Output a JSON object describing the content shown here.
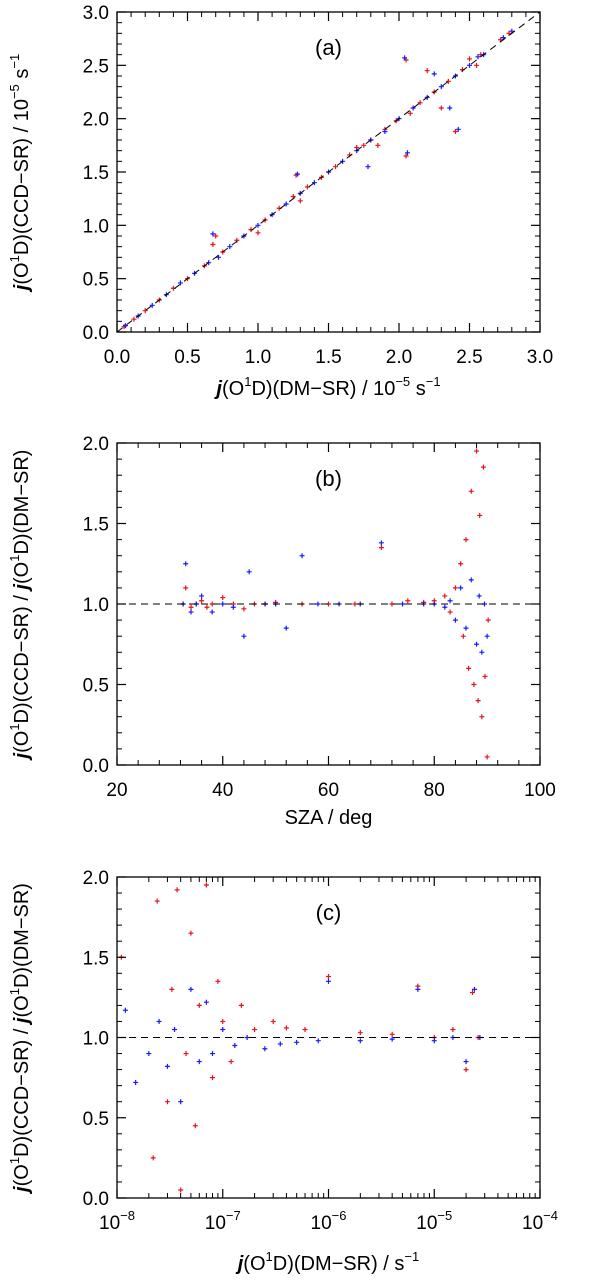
{
  "colors": {
    "series_a": "#e8131b",
    "series_b": "#1a1aff",
    "frame": "#000000",
    "refline": "#000000"
  },
  "chart_data": [
    {
      "id": "a",
      "type": "scatter",
      "panel_label": "(a)",
      "xlabel": {
        "pre": "j",
        "mid": "(O",
        "sup": "1",
        "post": "D)(DM−SR) / 10",
        "sup2": "−5",
        "tail": " s",
        "sup3": "−1"
      },
      "ylabel": {
        "pre": "j",
        "mid": "(O",
        "sup": "1",
        "post": "D)(CCD−SR) / 10",
        "sup2": "−5",
        "tail": " s",
        "sup3": "−1"
      },
      "xlim": [
        0,
        3
      ],
      "ylim": [
        0,
        3
      ],
      "xticks": [
        0,
        0.5,
        1,
        1.5,
        2,
        2.5,
        3
      ],
      "xtick_labels": [
        "0.0",
        "0.5",
        "1.0",
        "1.5",
        "2.0",
        "2.5",
        "3.0"
      ],
      "yticks": [
        0,
        0.5,
        1,
        1.5,
        2,
        2.5,
        3
      ],
      "ytick_labels": [
        "0.0",
        "0.5",
        "1.0",
        "1.5",
        "2.0",
        "2.5",
        "3.0"
      ],
      "reference_line": "1:1 dashed",
      "series": [
        {
          "color_key": "series_a",
          "points": [
            [
              0.05,
              0.05
            ],
            [
              0.12,
              0.12
            ],
            [
              0.2,
              0.2
            ],
            [
              0.3,
              0.3
            ],
            [
              0.4,
              0.41
            ],
            [
              0.5,
              0.5
            ],
            [
              0.62,
              0.62
            ],
            [
              0.7,
              0.9
            ],
            [
              0.68,
              0.82
            ],
            [
              0.75,
              0.75
            ],
            [
              0.85,
              0.86
            ],
            [
              0.95,
              0.96
            ],
            [
              1.0,
              0.93
            ],
            [
              1.05,
              1.05
            ],
            [
              1.15,
              1.16
            ],
            [
              1.25,
              1.27
            ],
            [
              1.27,
              1.47
            ],
            [
              1.3,
              1.23
            ],
            [
              1.35,
              1.36
            ],
            [
              1.45,
              1.45
            ],
            [
              1.55,
              1.55
            ],
            [
              1.65,
              1.66
            ],
            [
              1.7,
              1.73
            ],
            [
              1.75,
              1.75
            ],
            [
              1.8,
              1.8
            ],
            [
              1.85,
              1.75
            ],
            [
              1.9,
              1.9
            ],
            [
              1.98,
              1.98
            ],
            [
              2.05,
              2.55
            ],
            [
              2.05,
              1.65
            ],
            [
              2.08,
              2.05
            ],
            [
              2.15,
              2.15
            ],
            [
              2.2,
              2.45
            ],
            [
              2.25,
              2.25
            ],
            [
              2.3,
              2.1
            ],
            [
              2.35,
              2.35
            ],
            [
              2.4,
              1.88
            ],
            [
              2.45,
              2.46
            ],
            [
              2.5,
              2.56
            ],
            [
              2.55,
              2.5
            ],
            [
              2.58,
              2.6
            ],
            [
              2.72,
              2.74
            ],
            [
              2.78,
              2.8
            ]
          ]
        },
        {
          "color_key": "series_b",
          "points": [
            [
              0.06,
              0.06
            ],
            [
              0.15,
              0.15
            ],
            [
              0.25,
              0.25
            ],
            [
              0.35,
              0.35
            ],
            [
              0.45,
              0.46
            ],
            [
              0.55,
              0.55
            ],
            [
              0.65,
              0.65
            ],
            [
              0.68,
              0.92
            ],
            [
              0.72,
              0.7
            ],
            [
              0.8,
              0.8
            ],
            [
              0.9,
              0.9
            ],
            [
              1.0,
              1.0
            ],
            [
              1.1,
              1.1
            ],
            [
              1.2,
              1.2
            ],
            [
              1.28,
              1.48
            ],
            [
              1.3,
              1.3
            ],
            [
              1.4,
              1.4
            ],
            [
              1.5,
              1.5
            ],
            [
              1.6,
              1.6
            ],
            [
              1.7,
              1.7
            ],
            [
              1.78,
              1.55
            ],
            [
              1.8,
              1.8
            ],
            [
              1.9,
              1.88
            ],
            [
              2.0,
              2.0
            ],
            [
              2.04,
              2.57
            ],
            [
              2.06,
              1.68
            ],
            [
              2.1,
              2.1
            ],
            [
              2.2,
              2.2
            ],
            [
              2.25,
              2.42
            ],
            [
              2.3,
              2.3
            ],
            [
              2.36,
              2.1
            ],
            [
              2.4,
              2.4
            ],
            [
              2.42,
              1.9
            ],
            [
              2.5,
              2.5
            ],
            [
              2.56,
              2.58
            ],
            [
              2.6,
              2.6
            ],
            [
              2.74,
              2.76
            ],
            [
              2.8,
              2.82
            ]
          ]
        }
      ]
    },
    {
      "id": "b",
      "type": "scatter",
      "panel_label": "(b)",
      "xlabel": {
        "text": "SZA / deg"
      },
      "ylabel": {
        "pre": "j",
        "mid": "(O",
        "sup": "1",
        "post": "D)(CCD−SR) / ",
        "pre2": "j",
        "mid2": "(O",
        "sup2": "1",
        "post2": "D)(DM−SR)"
      },
      "xlim": [
        20,
        100
      ],
      "ylim": [
        0,
        2
      ],
      "xticks": [
        20,
        40,
        60,
        80,
        100
      ],
      "xtick_labels": [
        "20",
        "40",
        "60",
        "80",
        "100"
      ],
      "yticks": [
        0,
        0.5,
        1,
        1.5,
        2
      ],
      "ytick_labels": [
        "0.0",
        "0.5",
        "1.0",
        "1.5",
        "2.0"
      ],
      "reference_line": "y=1 dashed",
      "series": [
        {
          "color_key": "series_a",
          "points": [
            [
              32.5,
              1.0
            ],
            [
              33,
              1.1
            ],
            [
              34,
              0.98
            ],
            [
              35,
              1.0
            ],
            [
              36,
              1.02
            ],
            [
              37,
              0.98
            ],
            [
              38,
              1.0
            ],
            [
              40,
              1.04
            ],
            [
              42,
              1.0
            ],
            [
              44,
              0.97
            ],
            [
              46,
              1.0
            ],
            [
              48,
              1.0
            ],
            [
              50,
              1.01
            ],
            [
              55,
              1.0
            ],
            [
              60,
              1.0
            ],
            [
              65,
              1.0
            ],
            [
              70,
              1.35
            ],
            [
              72,
              1.0
            ],
            [
              75,
              1.02
            ],
            [
              78,
              1.01
            ],
            [
              80,
              1.02
            ],
            [
              82,
              1.05
            ],
            [
              83,
              0.95
            ],
            [
              84,
              1.1
            ],
            [
              85,
              1.25
            ],
            [
              85.5,
              0.8
            ],
            [
              86,
              1.4
            ],
            [
              86.5,
              0.6
            ],
            [
              87,
              1.7
            ],
            [
              87.5,
              0.5
            ],
            [
              88,
              1.95
            ],
            [
              88.3,
              0.4
            ],
            [
              88.6,
              1.55
            ],
            [
              89,
              0.3
            ],
            [
              89.3,
              1.85
            ],
            [
              89.6,
              0.55
            ],
            [
              90,
              0.05
            ],
            [
              90.2,
              0.9
            ]
          ]
        },
        {
          "color_key": "series_b",
          "points": [
            [
              32.5,
              1.0
            ],
            [
              33,
              1.25
            ],
            [
              34,
              0.95
            ],
            [
              35,
              1.0
            ],
            [
              36,
              1.05
            ],
            [
              38,
              0.95
            ],
            [
              40,
              1.0
            ],
            [
              42,
              0.98
            ],
            [
              44,
              0.8
            ],
            [
              45,
              1.2
            ],
            [
              48,
              1.0
            ],
            [
              50,
              1.0
            ],
            [
              52,
              0.85
            ],
            [
              55,
              1.3
            ],
            [
              58,
              1.0
            ],
            [
              62,
              1.0
            ],
            [
              66,
              1.0
            ],
            [
              70,
              1.38
            ],
            [
              74,
              1.0
            ],
            [
              78,
              1.0
            ],
            [
              80,
              1.0
            ],
            [
              82,
              0.98
            ],
            [
              83,
              1.02
            ],
            [
              84,
              0.9
            ],
            [
              85,
              1.1
            ],
            [
              86,
              0.85
            ],
            [
              87,
              1.15
            ],
            [
              88,
              0.75
            ],
            [
              88.5,
              1.05
            ],
            [
              89,
              0.7
            ],
            [
              89.5,
              1.0
            ],
            [
              90,
              0.8
            ]
          ]
        }
      ]
    },
    {
      "id": "c",
      "type": "scatter",
      "panel_label": "(c)",
      "xlabel": {
        "pre": "j",
        "mid": "(O",
        "sup": "1",
        "post": "D)(DM−SR) / s",
        "sup2": "−1"
      },
      "ylabel": {
        "pre": "j",
        "mid": "(O",
        "sup": "1",
        "post": "D)(CCD−SR) / ",
        "pre2": "j",
        "mid2": "(O",
        "sup2": "1",
        "post2": "D)(DM−SR)"
      },
      "xscale": "log",
      "xlim": [
        1e-08,
        0.0001
      ],
      "ylim": [
        0,
        2
      ],
      "xticks": [
        1e-08,
        1e-07,
        1e-06,
        1e-05,
        0.0001
      ],
      "xtick_labels": [
        {
          "base": "10",
          "exp": "−8"
        },
        {
          "base": "10",
          "exp": "−7"
        },
        {
          "base": "10",
          "exp": "−6"
        },
        {
          "base": "10",
          "exp": "−5"
        },
        {
          "base": "10",
          "exp": "−4"
        }
      ],
      "yticks": [
        0,
        0.5,
        1,
        1.5,
        2
      ],
      "ytick_labels": [
        "0.0",
        "0.5",
        "1.0",
        "1.5",
        "2.0"
      ],
      "reference_line": "y=1 dashed",
      "series": [
        {
          "color_key": "series_a",
          "points": [
            [
              1.1e-08,
              1.5
            ],
            [
              2.2e-08,
              0.25
            ],
            [
              2.4e-08,
              1.85
            ],
            [
              3e-08,
              0.6
            ],
            [
              3.3e-08,
              1.3
            ],
            [
              3.7e-08,
              1.92
            ],
            [
              4e-08,
              0.05
            ],
            [
              4.5e-08,
              0.9
            ],
            [
              5e-08,
              1.65
            ],
            [
              5.5e-08,
              0.45
            ],
            [
              6e-08,
              1.2
            ],
            [
              7e-08,
              1.95
            ],
            [
              8e-08,
              0.75
            ],
            [
              9e-08,
              1.35
            ],
            [
              1e-07,
              1.1
            ],
            [
              1.2e-07,
              0.85
            ],
            [
              1.5e-07,
              1.2
            ],
            [
              2e-07,
              1.05
            ],
            [
              3e-07,
              1.1
            ],
            [
              4e-07,
              1.06
            ],
            [
              6e-07,
              1.05
            ],
            [
              1e-06,
              1.38
            ],
            [
              2e-06,
              1.03
            ],
            [
              4e-06,
              1.02
            ],
            [
              7e-06,
              1.32
            ],
            [
              1e-05,
              1.0
            ],
            [
              1.5e-05,
              1.05
            ],
            [
              2e-05,
              0.8
            ],
            [
              2.3e-05,
              1.28
            ],
            [
              2.6e-05,
              1.0
            ]
          ]
        },
        {
          "color_key": "series_b",
          "points": [
            [
              1.2e-08,
              1.17
            ],
            [
              1.5e-08,
              0.72
            ],
            [
              2e-08,
              0.9
            ],
            [
              2.5e-08,
              1.1
            ],
            [
              3e-08,
              0.82
            ],
            [
              3.5e-08,
              1.05
            ],
            [
              4e-08,
              0.6
            ],
            [
              5e-08,
              1.3
            ],
            [
              6e-08,
              0.85
            ],
            [
              7e-08,
              1.22
            ],
            [
              8e-08,
              0.9
            ],
            [
              1e-07,
              1.05
            ],
            [
              1.3e-07,
              0.95
            ],
            [
              1.7e-07,
              1.0
            ],
            [
              2.5e-07,
              0.93
            ],
            [
              3.5e-07,
              0.96
            ],
            [
              5e-07,
              0.97
            ],
            [
              8e-07,
              0.98
            ],
            [
              1e-06,
              1.35
            ],
            [
              2e-06,
              0.98
            ],
            [
              4e-06,
              0.99
            ],
            [
              7e-06,
              1.3
            ],
            [
              1e-05,
              0.98
            ],
            [
              1.5e-05,
              1.0
            ],
            [
              2e-05,
              0.85
            ],
            [
              2.4e-05,
              1.3
            ],
            [
              2.7e-05,
              1.0
            ]
          ]
        }
      ]
    }
  ]
}
